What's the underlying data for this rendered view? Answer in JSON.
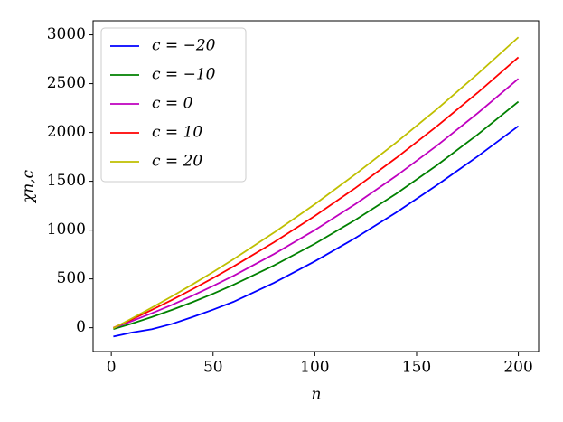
{
  "chart_data": {
    "type": "line",
    "x": [
      1,
      10,
      20,
      30,
      40,
      50,
      60,
      80,
      100,
      120,
      140,
      160,
      180,
      200
    ],
    "series": [
      {
        "name": "c = −20",
        "color": "#0000ff",
        "values": [
          -90,
          -50,
          -15,
          40,
          110,
          185,
          265,
          460,
          680,
          920,
          1180,
          1460,
          1755,
          2065
        ]
      },
      {
        "name": "c = −10",
        "color": "#008000",
        "values": [
          -14,
          42,
          110,
          184,
          263,
          348,
          439,
          638,
          860,
          1105,
          1373,
          1664,
          1978,
          2315
        ]
      },
      {
        "name": "c = 0",
        "color": "#bf00bf",
        "values": [
          -3,
          67,
          149,
          236,
          329,
          428,
          531,
          755,
          1000,
          1267,
          1555,
          1865,
          2197,
          2550
        ]
      },
      {
        "name": "c = 10",
        "color": "#ff0000",
        "values": [
          -1,
          84,
          183,
          287,
          396,
          509,
          627,
          876,
          1145,
          1432,
          1739,
          2064,
          2407,
          2770
        ]
      },
      {
        "name": "c = 20",
        "color": "#bfbf00",
        "values": [
          -5,
          94,
          207,
          324,
          445,
          571,
          701,
          975,
          1265,
          1573,
          1897,
          2239,
          2599,
          2975
        ]
      }
    ],
    "xlabel": "n",
    "ylabel": "χn,c",
    "xlim": [
      -8.95,
      209.95
    ],
    "ylim": [
      -244,
      3144
    ],
    "xticks": [
      0,
      50,
      100,
      150,
      200
    ],
    "yticks": [
      0,
      500,
      1000,
      1500,
      2000,
      2500,
      3000
    ],
    "legend": "upper left"
  }
}
